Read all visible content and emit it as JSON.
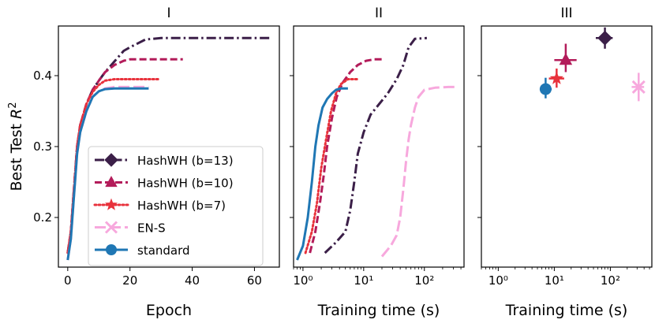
{
  "colors": {
    "hashwh_b13": "#3b1f48",
    "hashwh_b10": "#b31c5a",
    "hashwh_b7": "#e8323c",
    "en_s": "#f7a8dd",
    "standard": "#1f77b4"
  },
  "legend": [
    {
      "key": "hashwh_b13",
      "label": "HashWH (b=13)",
      "marker": "diamond",
      "dash": "dashdot"
    },
    {
      "key": "hashwh_b10",
      "label": "HashWH (b=10)",
      "marker": "triangle",
      "dash": "dashed"
    },
    {
      "key": "hashwh_b7",
      "label": "HashWH (b=7)",
      "marker": "star",
      "dash": "dotted"
    },
    {
      "key": "en_s",
      "label": "EN-S",
      "marker": "x",
      "dash": "longdash"
    },
    {
      "key": "standard",
      "label": "standard",
      "marker": "circle",
      "dash": "solid"
    }
  ],
  "chart_data": [
    {
      "panel": "I",
      "type": "line",
      "title": "I",
      "xlabel": "Epoch",
      "ylabel": "Best Test R²",
      "xlim": [
        -3,
        68
      ],
      "ylim": [
        0.13,
        0.47
      ],
      "xticks": [
        "0",
        "20",
        "40",
        "60"
      ],
      "xtick_values": [
        0,
        20,
        40,
        60
      ],
      "yticks": [
        "0.2",
        "0.3",
        "0.4"
      ],
      "ytick_values": [
        0.2,
        0.3,
        0.4
      ],
      "series": [
        {
          "key": "hashwh_b13",
          "name": "HashWH (b=13)",
          "x": [
            0,
            1,
            2,
            3,
            4,
            6,
            8,
            10,
            12,
            15,
            18,
            20,
            25,
            30,
            40,
            50,
            65
          ],
          "y": [
            0.15,
            0.18,
            0.24,
            0.3,
            0.33,
            0.36,
            0.38,
            0.393,
            0.405,
            0.42,
            0.435,
            0.44,
            0.451,
            0.453,
            0.453,
            0.453,
            0.453
          ]
        },
        {
          "key": "hashwh_b10",
          "name": "HashWH (b=10)",
          "x": [
            0,
            1,
            2,
            3,
            4,
            6,
            8,
            10,
            12,
            15,
            18,
            20,
            25,
            30,
            37
          ],
          "y": [
            0.15,
            0.18,
            0.24,
            0.3,
            0.33,
            0.36,
            0.38,
            0.393,
            0.405,
            0.415,
            0.421,
            0.423,
            0.423,
            0.423,
            0.423
          ]
        },
        {
          "key": "hashwh_b7",
          "name": "HashWH (b=7)",
          "x": [
            0,
            1,
            2,
            3,
            4,
            6,
            8,
            10,
            12,
            15,
            20,
            25,
            29
          ],
          "y": [
            0.15,
            0.18,
            0.24,
            0.3,
            0.33,
            0.36,
            0.377,
            0.387,
            0.393,
            0.395,
            0.395,
            0.395,
            0.395
          ]
        },
        {
          "key": "en_s",
          "name": "EN-S",
          "x": [
            0,
            1,
            2,
            3,
            4,
            6,
            8,
            10,
            12,
            15,
            20,
            26
          ],
          "y": [
            0.14,
            0.17,
            0.23,
            0.29,
            0.32,
            0.35,
            0.37,
            0.378,
            0.382,
            0.384,
            0.384,
            0.384
          ]
        },
        {
          "key": "standard",
          "name": "standard",
          "x": [
            0,
            1,
            2,
            3,
            4,
            6,
            8,
            10,
            12,
            15,
            20,
            26
          ],
          "y": [
            0.14,
            0.17,
            0.23,
            0.29,
            0.32,
            0.35,
            0.37,
            0.378,
            0.381,
            0.382,
            0.382,
            0.382
          ]
        }
      ]
    },
    {
      "panel": "II",
      "type": "line",
      "title": "II",
      "xlabel": "Training time (s)",
      "xscale": "log",
      "xlim": [
        0.7,
        450
      ],
      "ylim": [
        0.13,
        0.47
      ],
      "xticks": [
        "10⁰",
        "10¹",
        "10²"
      ],
      "xtick_values": [
        1,
        10,
        100
      ],
      "yticks": [],
      "series": [
        {
          "key": "hashwh_b13",
          "name": "HashWH (b=13)",
          "x": [
            2.3,
            3.5,
            5,
            6,
            7,
            8,
            10,
            13,
            18,
            25,
            35,
            45,
            55,
            70,
            110
          ],
          "y": [
            0.15,
            0.165,
            0.18,
            0.21,
            0.25,
            0.29,
            0.32,
            0.345,
            0.36,
            0.375,
            0.395,
            0.415,
            0.44,
            0.452,
            0.453
          ]
        },
        {
          "key": "hashwh_b10",
          "name": "HashWH (b=10)",
          "x": [
            1.3,
            1.6,
            1.9,
            2.2,
            2.5,
            3,
            3.6,
            4.5,
            6,
            8,
            11,
            15,
            20
          ],
          "y": [
            0.15,
            0.18,
            0.22,
            0.26,
            0.3,
            0.34,
            0.37,
            0.39,
            0.405,
            0.415,
            0.421,
            0.423,
            0.423
          ]
        },
        {
          "key": "hashwh_b7",
          "name": "HashWH (b=7)",
          "x": [
            1.1,
            1.4,
            1.7,
            2,
            2.4,
            2.9,
            3.5,
            4.2,
            5.5,
            8
          ],
          "y": [
            0.15,
            0.18,
            0.22,
            0.27,
            0.31,
            0.35,
            0.375,
            0.388,
            0.395,
            0.395
          ]
        },
        {
          "key": "en_s",
          "name": "EN-S",
          "x": [
            20,
            28,
            35,
            40,
            45,
            50,
            55,
            60,
            70,
            80,
            100,
            150,
            250,
            330
          ],
          "y": [
            0.145,
            0.16,
            0.175,
            0.2,
            0.24,
            0.28,
            0.31,
            0.33,
            0.355,
            0.37,
            0.38,
            0.383,
            0.384,
            0.384
          ]
        },
        {
          "key": "standard",
          "name": "standard",
          "x": [
            0.8,
            1.0,
            1.2,
            1.4,
            1.6,
            1.8,
            2.1,
            2.5,
            3,
            3.5,
            4.2,
            5.5
          ],
          "y": [
            0.14,
            0.16,
            0.2,
            0.25,
            0.3,
            0.33,
            0.355,
            0.367,
            0.375,
            0.38,
            0.382,
            0.382
          ]
        }
      ]
    },
    {
      "panel": "III",
      "type": "scatter",
      "title": "III",
      "xlabel": "Training time (s)",
      "xscale": "log",
      "xlim": [
        0.5,
        550
      ],
      "ylim": [
        0.13,
        0.47
      ],
      "xticks": [
        "10⁰",
        "10¹",
        "10²"
      ],
      "xtick_values": [
        1,
        10,
        100
      ],
      "yticks": [],
      "points": [
        {
          "key": "hashwh_b13",
          "name": "HashWH (b=13)",
          "x": 80,
          "y": 0.453,
          "xerr": [
            55,
            110
          ],
          "yerr": [
            0.438,
            0.468
          ]
        },
        {
          "key": "hashwh_b10",
          "name": "HashWH (b=10)",
          "x": 16,
          "y": 0.422,
          "xerr": [
            10,
            25
          ],
          "yerr": [
            0.405,
            0.445
          ]
        },
        {
          "key": "hashwh_b7",
          "name": "HashWH (b=7)",
          "x": 11,
          "y": 0.396,
          "xerr": [
            8,
            15
          ],
          "yerr": [
            0.383,
            0.41
          ]
        },
        {
          "key": "en_s",
          "name": "EN-S",
          "x": 320,
          "y": 0.384,
          "xerr": [
            240,
            400
          ],
          "yerr": [
            0.364,
            0.404
          ]
        },
        {
          "key": "standard",
          "name": "standard",
          "x": 7,
          "y": 0.381,
          "xerr": [
            5.5,
            9
          ],
          "yerr": [
            0.368,
            0.397
          ]
        }
      ]
    }
  ]
}
